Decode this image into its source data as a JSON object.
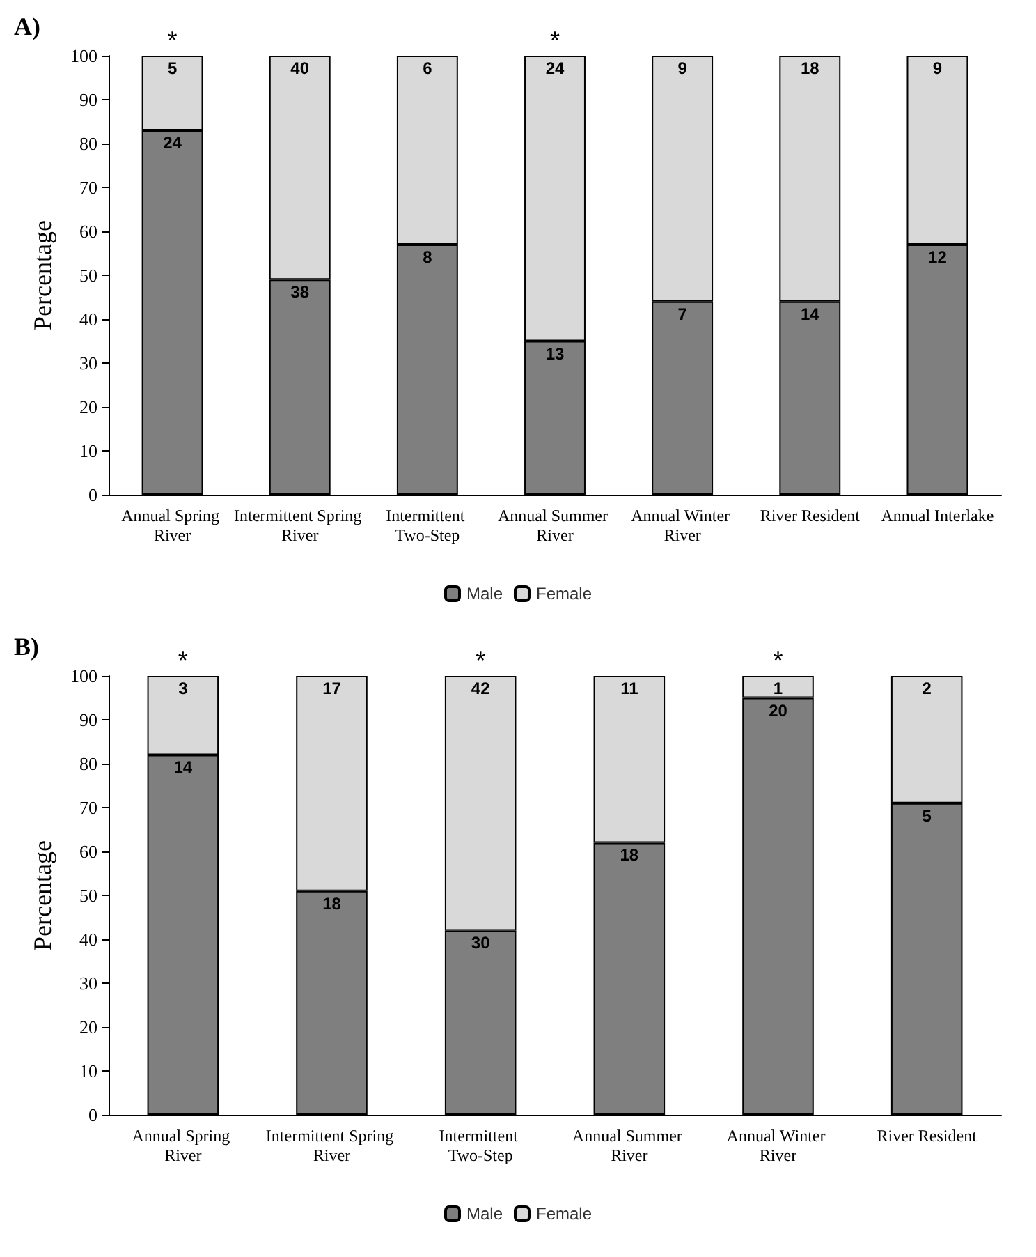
{
  "chart_data": [
    {
      "type": "bar",
      "title": "A)",
      "ylabel": "Percentage",
      "stacked": true,
      "legend": "bottom",
      "grid": false,
      "categories": [
        "Annual Spring River",
        "Intermittent Spring River",
        "Intermittent Two-Step",
        "Annual Summer River",
        "Annual Winter River",
        "River Resident",
        "Annual Interlake"
      ],
      "series": [
        {
          "name": "Male",
          "color": "#7f7f7f",
          "values": [
            83,
            49,
            57,
            35,
            44,
            44,
            57
          ]
        },
        {
          "name": "Female",
          "color": "#d9d9d9",
          "values": [
            17,
            51,
            43,
            65,
            56,
            56,
            43
          ]
        }
      ],
      "ylim": [
        0,
        100
      ],
      "yticks": [
        0,
        10,
        20,
        30,
        40,
        50,
        60,
        70,
        80,
        90,
        100
      ],
      "annotations": [
        {
          "text": "*",
          "x": "Annual Spring River",
          "y": 100
        },
        {
          "text": "*",
          "x": "Annual Summer River",
          "y": 100
        },
        {
          "text": "24",
          "x": "Annual Spring River",
          "y": 83
        },
        {
          "text": "38",
          "x": "Intermittent Spring River",
          "y": 49
        },
        {
          "text": "8",
          "x": "Intermittent Two-Step",
          "y": 57
        },
        {
          "text": "13",
          "x": "Annual Summer River",
          "y": 35
        },
        {
          "text": "7",
          "x": "Annual Winter River",
          "y": 44
        },
        {
          "text": "14",
          "x": "River Resident",
          "y": 44
        },
        {
          "text": "12",
          "x": "Annual Interlake",
          "y": 57
        },
        {
          "text": "5",
          "x": "Annual Spring River",
          "y": 100
        },
        {
          "text": "40",
          "x": "Intermittent Spring River",
          "y": 100
        },
        {
          "text": "6",
          "x": "Intermittent Two-Step",
          "y": 100
        },
        {
          "text": "24",
          "x": "Annual Summer River",
          "y": 100
        },
        {
          "text": "9",
          "x": "Annual Winter River",
          "y": 100
        },
        {
          "text": "18",
          "x": "River Resident",
          "y": 100
        },
        {
          "text": "9",
          "x": "Annual Interlake",
          "y": 100
        }
      ]
    },
    {
      "type": "bar",
      "title": "B)",
      "ylabel": "Percentage",
      "stacked": true,
      "legend": "bottom",
      "grid": false,
      "categories": [
        "Annual Spring River",
        "Intermittent Spring River",
        "Intermittent Two-Step",
        "Annual Summer River",
        "Annual Winter River",
        "River Resident"
      ],
      "series": [
        {
          "name": "Male",
          "color": "#7f7f7f",
          "values": [
            82,
            51,
            42,
            62,
            95,
            71
          ]
        },
        {
          "name": "Female",
          "color": "#d9d9d9",
          "values": [
            18,
            49,
            58,
            38,
            5,
            29
          ]
        }
      ],
      "ylim": [
        0,
        100
      ],
      "yticks": [
        0,
        10,
        20,
        30,
        40,
        50,
        60,
        70,
        80,
        90,
        100
      ],
      "annotations": [
        {
          "text": "*",
          "x": "Annual Spring River",
          "y": 100
        },
        {
          "text": "*",
          "x": "Intermittent Two-Step",
          "y": 100
        },
        {
          "text": "*",
          "x": "Annual Winter River",
          "y": 100
        },
        {
          "text": "14",
          "x": "Annual Spring River",
          "y": 82
        },
        {
          "text": "18",
          "x": "Intermittent Spring River",
          "y": 51
        },
        {
          "text": "30",
          "x": "Intermittent Two-Step",
          "y": 42
        },
        {
          "text": "18",
          "x": "Annual Summer River",
          "y": 62
        },
        {
          "text": "20",
          "x": "Annual Winter River",
          "y": 95
        },
        {
          "text": "5",
          "x": "River Resident",
          "y": 71
        },
        {
          "text": "3",
          "x": "Annual Spring River",
          "y": 100
        },
        {
          "text": "17",
          "x": "Intermittent Spring River",
          "y": 100
        },
        {
          "text": "42",
          "x": "Intermittent Two-Step",
          "y": 100
        },
        {
          "text": "11",
          "x": "Annual Summer River",
          "y": 100
        },
        {
          "text": "1",
          "x": "Annual Winter River",
          "y": 100
        },
        {
          "text": "2",
          "x": "River Resident",
          "y": 100
        }
      ]
    }
  ]
}
